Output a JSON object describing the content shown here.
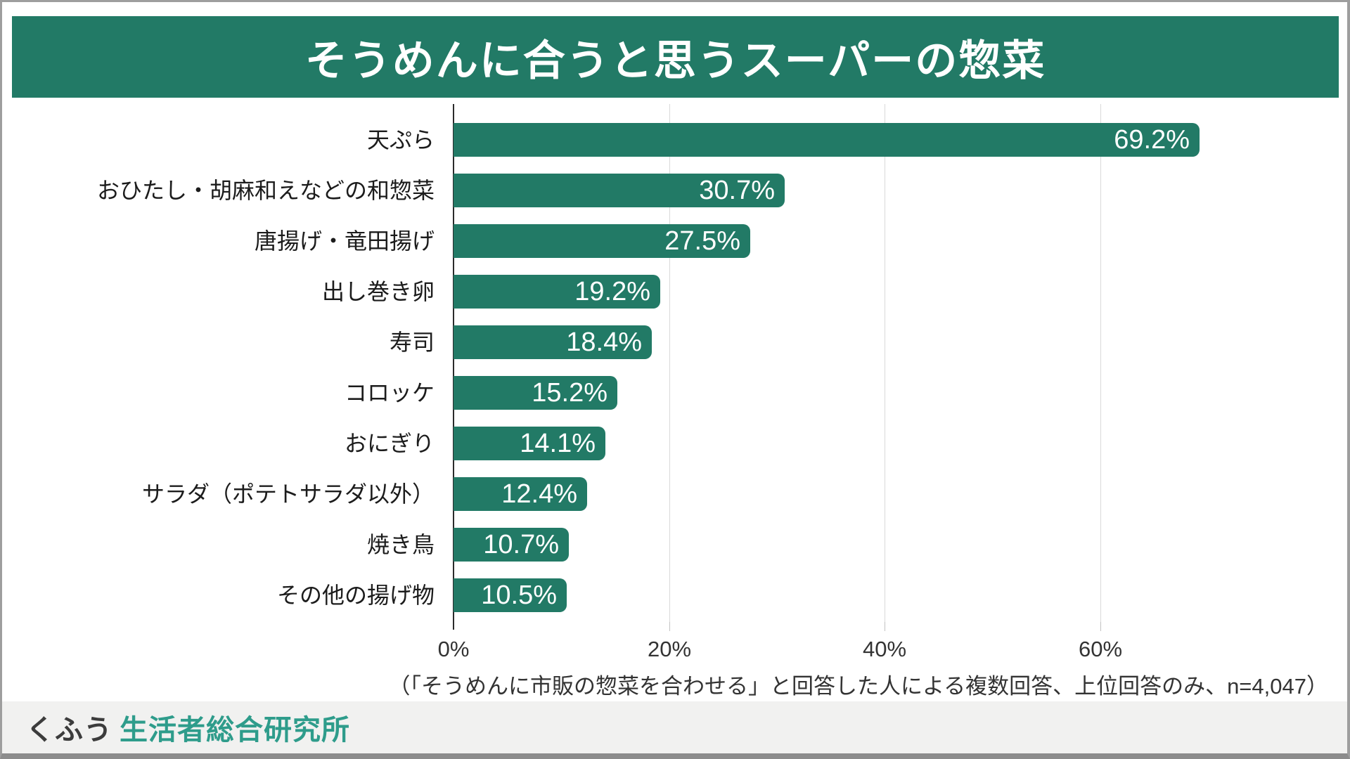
{
  "title": "そうめんに合うと思うスーパーの惣菜",
  "chart_data": {
    "type": "bar",
    "orientation": "horizontal",
    "title": "そうめんに合うと思うスーパーの惣菜",
    "categories": [
      "天ぷら",
      "おひたし・胡麻和えなどの和惣菜",
      "唐揚げ・竜田揚げ",
      "出し巻き卵",
      "寿司",
      "コロッケ",
      "おにぎり",
      "サラダ（ポテトサラダ以外）",
      "焼き鳥",
      "その他の揚げ物"
    ],
    "values": [
      69.2,
      30.7,
      27.5,
      19.2,
      18.4,
      15.2,
      14.1,
      12.4,
      10.7,
      10.5
    ],
    "value_labels": [
      "69.2%",
      "30.7%",
      "27.5%",
      "19.2%",
      "18.4%",
      "15.2%",
      "14.1%",
      "12.4%",
      "10.7%",
      "10.5%"
    ],
    "xlabel": "",
    "ylabel": "",
    "xlim": [
      0,
      82
    ],
    "x_tick_values": [
      0,
      20,
      40,
      60
    ],
    "x_tick_labels": [
      "0%",
      "20%",
      "40%",
      "60%"
    ],
    "grid": "vertical-light",
    "legend": "none",
    "bar_color": "#227A66",
    "value_label_position": "inside-right",
    "value_label_color": "#ffffff"
  },
  "footnote": "（「そうめんに市販の惣菜を合わせる」と回答した人による複数回答、上位回答のみ、n=4,047）",
  "footer": {
    "logo_primary": "くふう",
    "logo_secondary": "生活者総合研究所"
  },
  "colors": {
    "banner_bg": "#227A66",
    "bar": "#227A66",
    "gridline": "#d9d9d9",
    "axis": "#2b2b2b",
    "footer_bg": "#f1f1f0",
    "logo_primary": "#3c3c3c",
    "logo_secondary": "#2e9c8b",
    "frame_border": "#9e9e9e"
  }
}
